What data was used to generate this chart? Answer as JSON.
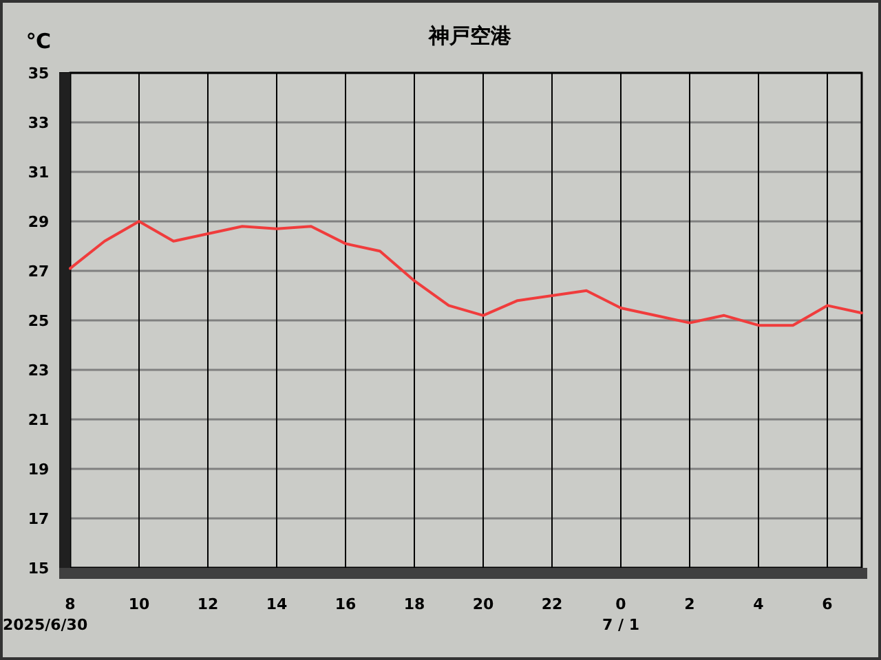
{
  "chart_data": {
    "type": "line",
    "title": "神戸空港",
    "ylabel": "℃",
    "x": [
      "2025-06-30T08:00",
      "2025-06-30T09:00",
      "2025-06-30T10:00",
      "2025-06-30T11:00",
      "2025-06-30T12:00",
      "2025-06-30T13:00",
      "2025-06-30T14:00",
      "2025-06-30T15:00",
      "2025-06-30T16:00",
      "2025-06-30T17:00",
      "2025-06-30T18:00",
      "2025-06-30T19:00",
      "2025-06-30T20:00",
      "2025-06-30T21:00",
      "2025-06-30T22:00",
      "2025-06-30T23:00",
      "2025-07-01T00:00",
      "2025-07-01T01:00",
      "2025-07-01T02:00",
      "2025-07-01T03:00",
      "2025-07-01T04:00",
      "2025-07-01T05:00",
      "2025-07-01T06:00",
      "2025-07-01T07:00"
    ],
    "series": [
      {
        "color": "#f03c3c",
        "values": [
          27.1,
          28.2,
          29.0,
          28.2,
          28.5,
          28.8,
          28.7,
          28.8,
          28.1,
          27.8,
          26.6,
          25.6,
          25.2,
          25.8,
          26.0,
          26.2,
          25.5,
          25.2,
          24.9,
          25.2,
          24.8,
          24.8,
          25.6,
          25.3
        ]
      }
    ],
    "xlim": [
      "2025-06-30T08:00",
      "2025-07-01T07:00"
    ],
    "xticks": [
      {
        "value": "2025-06-30T08:00",
        "label": "8"
      },
      {
        "value": "2025-06-30T10:00",
        "label": "10"
      },
      {
        "value": "2025-06-30T12:00",
        "label": "12"
      },
      {
        "value": "2025-06-30T14:00",
        "label": "14"
      },
      {
        "value": "2025-06-30T16:00",
        "label": "16"
      },
      {
        "value": "2025-06-30T18:00",
        "label": "18"
      },
      {
        "value": "2025-06-30T20:00",
        "label": "20"
      },
      {
        "value": "2025-06-30T22:00",
        "label": "22"
      },
      {
        "value": "2025-07-01T00:00",
        "label": "0"
      },
      {
        "value": "2025-07-01T02:00",
        "label": "2"
      },
      {
        "value": "2025-07-01T04:00",
        "label": "4"
      },
      {
        "value": "2025-07-01T06:00",
        "label": "6"
      }
    ],
    "ylim": [
      15,
      35
    ],
    "yticks": [
      15,
      17,
      19,
      21,
      23,
      25,
      27,
      29,
      31,
      33,
      35
    ],
    "grid": true,
    "marker": "none",
    "line_style": "solid",
    "annotations": [
      "2025/6/30",
      "7 / 1"
    ]
  }
}
